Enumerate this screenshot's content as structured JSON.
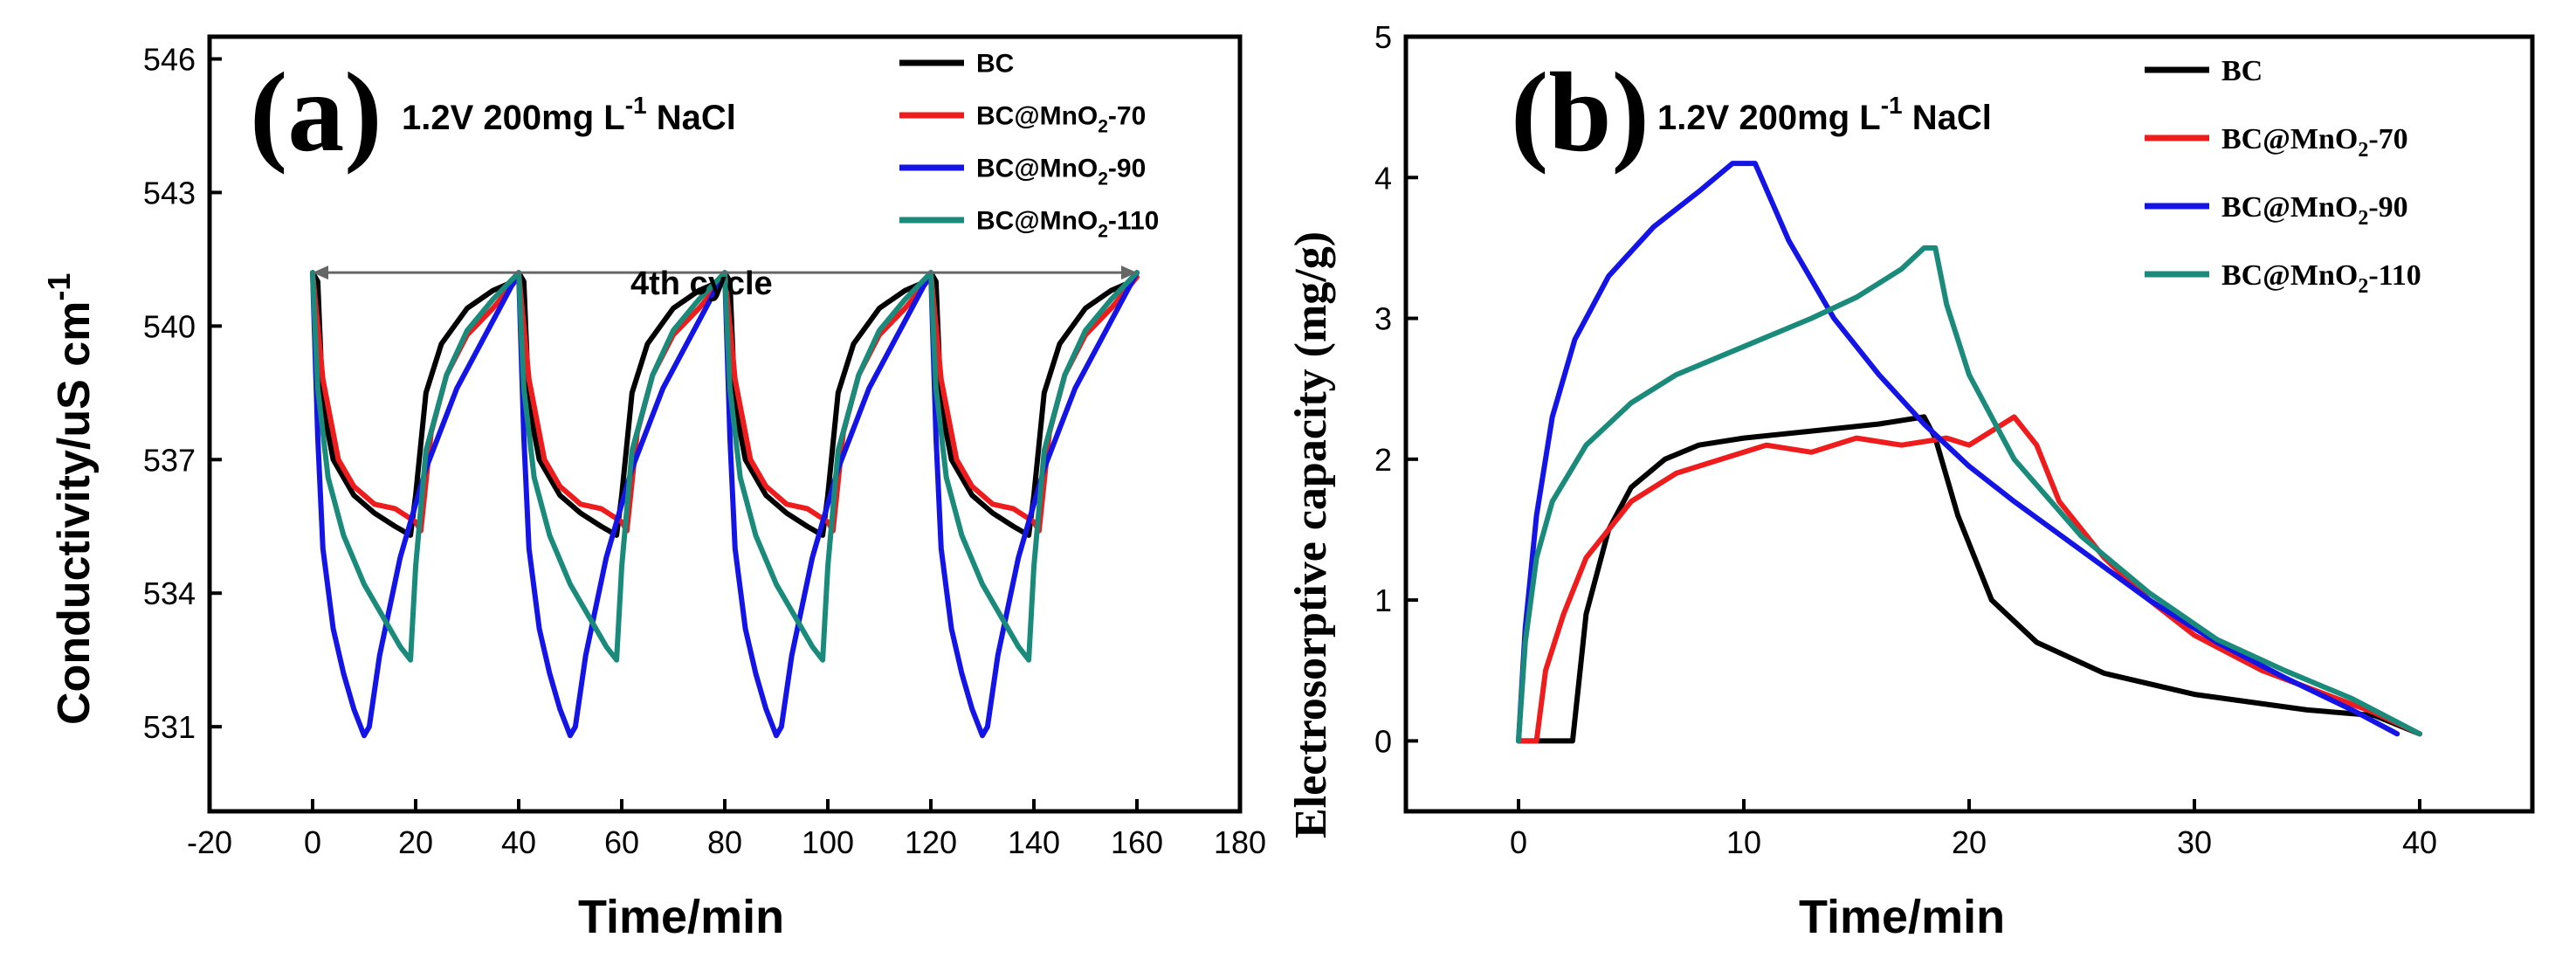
{
  "chart_data": [
    {
      "id": "a",
      "type": "line",
      "panel_label": "(a)",
      "condition": "1.2V 200mg L",
      "condition_sup": "-1",
      "condition_tail": " NaCl",
      "xlabel": "Time/min",
      "ylabel": "Conductivity/uS cm",
      "ylabel_sup": "-1",
      "xlim": [
        -20,
        180
      ],
      "ylim": [
        529.1,
        546.5
      ],
      "xticks": [
        -20,
        0,
        20,
        40,
        60,
        80,
        100,
        120,
        140,
        160,
        180
      ],
      "yticks": [
        531,
        534,
        537,
        540,
        543,
        546
      ],
      "annotation": "4th cycle",
      "annotation_arrow": [
        0,
        160
      ],
      "annotation_y": 541.2,
      "legend_position": "top-right",
      "legend": [
        {
          "label": "BC",
          "sub": "",
          "tail": ""
        },
        {
          "label": "BC@MnO",
          "sub": "2",
          "tail": "-70"
        },
        {
          "label": "BC@MnO",
          "sub": "2",
          "tail": "-90"
        },
        {
          "label": "BC@MnO",
          "sub": "2",
          "tail": "-110"
        }
      ],
      "cycle_period_min": 40,
      "cycle_starts": [
        0,
        40,
        80,
        120
      ],
      "series": [
        {
          "name": "BC",
          "color": "#000000",
          "cycle_points": [
            [
              0,
              541.2
            ],
            [
              1,
              541.0
            ],
            [
              2,
              538.2
            ],
            [
              4,
              537.0
            ],
            [
              8,
              536.2
            ],
            [
              12,
              535.8
            ],
            [
              16,
              535.5
            ],
            [
              19,
              535.3
            ],
            [
              20,
              536.2
            ],
            [
              22,
              538.5
            ],
            [
              25,
              539.6
            ],
            [
              30,
              540.4
            ],
            [
              35,
              540.8
            ],
            [
              39,
              541.0
            ],
            [
              40,
              541.2
            ]
          ]
        },
        {
          "name": "BC@MnO2-70",
          "color": "#ee1c1c",
          "cycle_points": [
            [
              0,
              541.2
            ],
            [
              2,
              538.8
            ],
            [
              5,
              537.0
            ],
            [
              8,
              536.4
            ],
            [
              12,
              536.0
            ],
            [
              16,
              535.9
            ],
            [
              20,
              535.6
            ],
            [
              21,
              535.4
            ],
            [
              23,
              537.6
            ],
            [
              26,
              538.9
            ],
            [
              30,
              539.8
            ],
            [
              35,
              540.4
            ],
            [
              40,
              541.1
            ]
          ]
        },
        {
          "name": "BC@MnO2-90",
          "color": "#1414e6",
          "cycle_points": [
            [
              0,
              541.2
            ],
            [
              1,
              537.5
            ],
            [
              2,
              535.0
            ],
            [
              4,
              533.2
            ],
            [
              6,
              532.2
            ],
            [
              8,
              531.4
            ],
            [
              10,
              530.8
            ],
            [
              11,
              531.0
            ],
            [
              13,
              532.6
            ],
            [
              17,
              534.8
            ],
            [
              22,
              536.8
            ],
            [
              28,
              538.6
            ],
            [
              34,
              539.9
            ],
            [
              40,
              541.2
            ]
          ]
        },
        {
          "name": "BC@MnO2-110",
          "color": "#1a8a7a",
          "cycle_points": [
            [
              0,
              541.2
            ],
            [
              1,
              538.6
            ],
            [
              3,
              536.6
            ],
            [
              6,
              535.3
            ],
            [
              10,
              534.2
            ],
            [
              14,
              533.4
            ],
            [
              17,
              532.8
            ],
            [
              19,
              532.5
            ],
            [
              20,
              534.6
            ],
            [
              22,
              537.2
            ],
            [
              26,
              538.9
            ],
            [
              30,
              539.9
            ],
            [
              35,
              540.6
            ],
            [
              40,
              541.2
            ]
          ]
        }
      ]
    },
    {
      "id": "b",
      "type": "line",
      "panel_label": "(b)",
      "condition": "1.2V 200mg L",
      "condition_sup": "-1",
      "condition_tail": " NaCl",
      "xlabel": "Time/min",
      "ylabel": "Electrosorptive capacity (mg/g)",
      "xlim": [
        -5,
        45
      ],
      "ylim": [
        -0.5,
        5
      ],
      "xticks": [
        0,
        10,
        20,
        30,
        40
      ],
      "yticks": [
        0,
        1,
        2,
        3,
        4,
        5
      ],
      "legend_position": "top-right",
      "legend": [
        {
          "label": "BC",
          "sub": "",
          "tail": ""
        },
        {
          "label": "BC@MnO",
          "sub": "2",
          "tail": "-70"
        },
        {
          "label": "BC@MnO",
          "sub": "2",
          "tail": "-90"
        },
        {
          "label": "BC@MnO",
          "sub": "2",
          "tail": "-110"
        }
      ],
      "series": [
        {
          "name": "BC",
          "color": "#000000",
          "points": [
            [
              0,
              0.0
            ],
            [
              1.5,
              0.0
            ],
            [
              2.4,
              0.0
            ],
            [
              2.6,
              0.3
            ],
            [
              3.0,
              0.9
            ],
            [
              4.0,
              1.5
            ],
            [
              5.0,
              1.8
            ],
            [
              6.5,
              2.0
            ],
            [
              8.0,
              2.1
            ],
            [
              10.0,
              2.15
            ],
            [
              13.0,
              2.2
            ],
            [
              16.0,
              2.25
            ],
            [
              18.0,
              2.3
            ],
            [
              18.5,
              2.15
            ],
            [
              19.5,
              1.6
            ],
            [
              21.0,
              1.0
            ],
            [
              23.0,
              0.7
            ],
            [
              26.0,
              0.48
            ],
            [
              30.0,
              0.33
            ],
            [
              35.0,
              0.22
            ],
            [
              38.0,
              0.18
            ],
            [
              40.0,
              0.05
            ]
          ]
        },
        {
          "name": "BC@MnO2-70",
          "color": "#ee1c1c",
          "points": [
            [
              0,
              0.0
            ],
            [
              0.8,
              0.0
            ],
            [
              1.2,
              0.5
            ],
            [
              2.0,
              0.9
            ],
            [
              3.0,
              1.3
            ],
            [
              5.0,
              1.7
            ],
            [
              7.0,
              1.9
            ],
            [
              9.0,
              2.0
            ],
            [
              11.0,
              2.1
            ],
            [
              13.0,
              2.05
            ],
            [
              15.0,
              2.15
            ],
            [
              17.0,
              2.1
            ],
            [
              19.0,
              2.15
            ],
            [
              20.0,
              2.1
            ],
            [
              21.0,
              2.2
            ],
            [
              22.0,
              2.3
            ],
            [
              23.0,
              2.1
            ],
            [
              24.0,
              1.7
            ],
            [
              26.0,
              1.3
            ],
            [
              28.0,
              1.0
            ],
            [
              30.0,
              0.75
            ],
            [
              33.0,
              0.5
            ],
            [
              36.0,
              0.32
            ],
            [
              38.0,
              0.2
            ],
            [
              40.0,
              0.05
            ]
          ]
        },
        {
          "name": "BC@MnO2-90",
          "color": "#1414e6",
          "points": [
            [
              0,
              0.0
            ],
            [
              0.3,
              0.8
            ],
            [
              0.8,
              1.6
            ],
            [
              1.5,
              2.3
            ],
            [
              2.5,
              2.85
            ],
            [
              4.0,
              3.3
            ],
            [
              6.0,
              3.65
            ],
            [
              8.0,
              3.9
            ],
            [
              9.5,
              4.1
            ],
            [
              10.5,
              4.1
            ],
            [
              12.0,
              3.55
            ],
            [
              14.0,
              3.0
            ],
            [
              16.0,
              2.6
            ],
            [
              18.0,
              2.25
            ],
            [
              20.0,
              1.95
            ],
            [
              22.0,
              1.7
            ],
            [
              25.0,
              1.35
            ],
            [
              28.0,
              1.0
            ],
            [
              31.0,
              0.7
            ],
            [
              34.0,
              0.45
            ],
            [
              37.0,
              0.22
            ],
            [
              39.0,
              0.05
            ]
          ]
        },
        {
          "name": "BC@MnO2-110",
          "color": "#1a8a7a",
          "points": [
            [
              0,
              0.0
            ],
            [
              0.3,
              0.7
            ],
            [
              0.8,
              1.3
            ],
            [
              1.5,
              1.7
            ],
            [
              3.0,
              2.1
            ],
            [
              5.0,
              2.4
            ],
            [
              7.0,
              2.6
            ],
            [
              10.0,
              2.8
            ],
            [
              13.0,
              3.0
            ],
            [
              15.0,
              3.15
            ],
            [
              17.0,
              3.35
            ],
            [
              18.0,
              3.5
            ],
            [
              18.5,
              3.5
            ],
            [
              19.0,
              3.1
            ],
            [
              20.0,
              2.6
            ],
            [
              22.0,
              2.0
            ],
            [
              25.0,
              1.45
            ],
            [
              28.0,
              1.05
            ],
            [
              31.0,
              0.72
            ],
            [
              34.0,
              0.5
            ],
            [
              37.0,
              0.3
            ],
            [
              40.0,
              0.05
            ]
          ]
        }
      ]
    }
  ]
}
